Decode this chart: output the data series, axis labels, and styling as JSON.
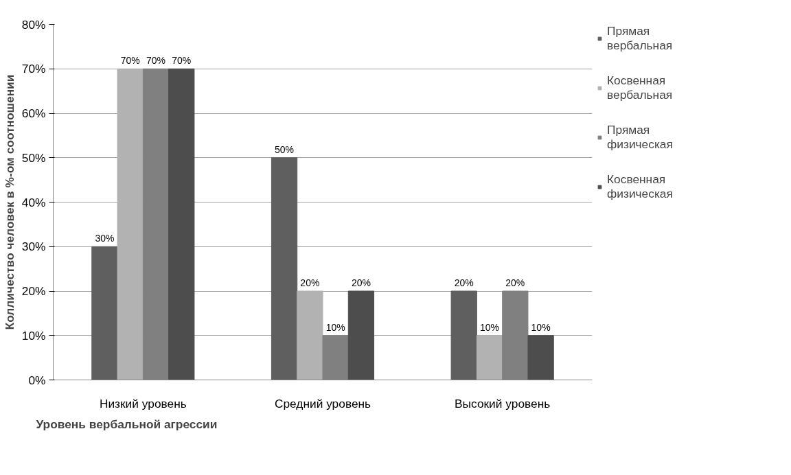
{
  "chart_data": {
    "type": "bar",
    "xlabel": "Уровень вербальной агрессии",
    "ylabel": "Колличество человек в %-ом соотношении",
    "categories": [
      "Низкий уровень",
      "Средний уровень",
      "Высокий уровень"
    ],
    "series": [
      {
        "name": "Прямая вербальная",
        "color": "#5f5f5f",
        "values": [
          30,
          50,
          20
        ],
        "value_labels": [
          "30%",
          "50%",
          "20%"
        ]
      },
      {
        "name": "Косвенная вербальная",
        "color": "#b2b2b2",
        "values": [
          70,
          20,
          10
        ],
        "value_labels": [
          "70%",
          "20%",
          "10%"
        ]
      },
      {
        "name": "Прямая физическая",
        "color": "#808080",
        "values": [
          70,
          10,
          20
        ],
        "value_labels": [
          "70%",
          "10%",
          "20%"
        ]
      },
      {
        "name": "Косвенная физическая",
        "color": "#4d4d4d",
        "values": [
          70,
          20,
          10
        ],
        "value_labels": [
          "70%",
          "20%",
          "10%"
        ]
      }
    ],
    "ylim": [
      0,
      80
    ],
    "yticks": [
      {
        "value": 0,
        "label": "0%"
      },
      {
        "value": 10,
        "label": "10%"
      },
      {
        "value": 20,
        "label": "20%"
      },
      {
        "value": 30,
        "label": "30%"
      },
      {
        "value": 40,
        "label": "40%"
      },
      {
        "value": 50,
        "label": "50%"
      },
      {
        "value": 60,
        "label": "60%"
      },
      {
        "value": 70,
        "label": "70%"
      },
      {
        "value": 80,
        "label": "80%"
      }
    ],
    "grid": "y",
    "legend": "right"
  }
}
